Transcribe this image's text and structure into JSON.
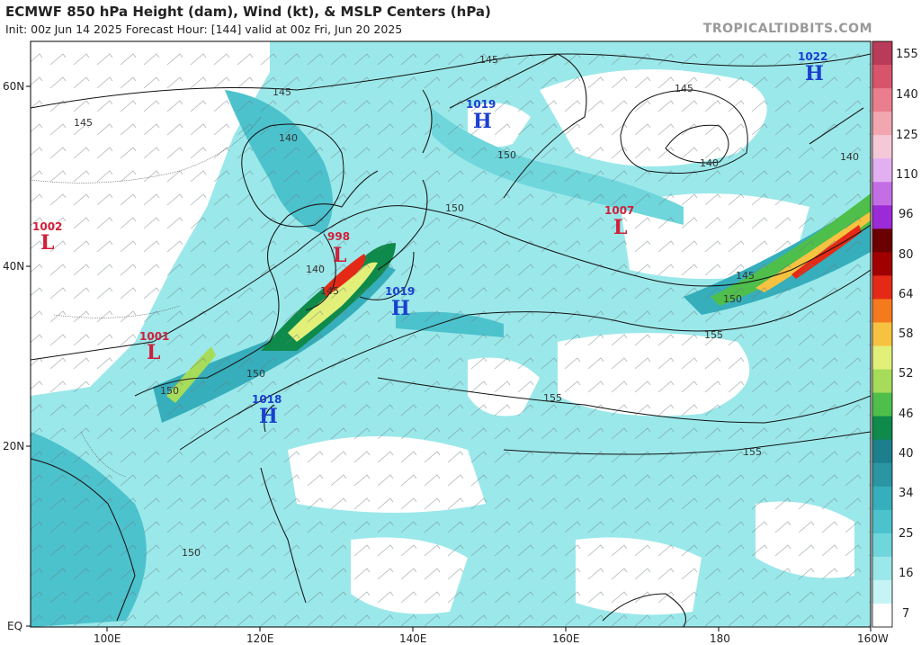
{
  "header": {
    "title": "ECMWF 850 hPa Height (dam), Wind (kt), & MSLP Centers (hPa)",
    "subtitle": "Init: 00z Jun 14 2025   Forecast Hour: [144]   valid at 00z Fri, Jun 20 2025",
    "brand": "TROPICALTIDBITS.COM"
  },
  "axes": {
    "lat_labels": [
      "60N",
      "40N",
      "20N",
      "EQ"
    ],
    "lon_labels": [
      "100E",
      "120E",
      "140E",
      "160E",
      "180",
      "160W"
    ]
  },
  "colorbar": {
    "labels": [
      "155",
      "140",
      "125",
      "110",
      "96",
      "80",
      "64",
      "58",
      "52",
      "46",
      "40",
      "34",
      "25",
      "16",
      "7"
    ],
    "colors": [
      "#b83c5a",
      "#d8546a",
      "#ea7e8c",
      "#f2a6b0",
      "#f5c8d8",
      "#e2b0f0",
      "#c46ee6",
      "#9b2bd6",
      "#6a0000",
      "#a00000",
      "#e42a16",
      "#f57a1e",
      "#f7c240",
      "#e2f07a",
      "#a6dc5a",
      "#4ebf4a",
      "#0e8a4a",
      "#1d7e8c",
      "#2a95a3",
      "#36aebb",
      "#4cc2cd",
      "#6fd6dc",
      "#9be8ea",
      "#c6f4f4",
      "#ffffff"
    ]
  },
  "contour_labels": [
    "145",
    "145",
    "145",
    "140",
    "150",
    "150",
    "140",
    "145",
    "150",
    "155",
    "155",
    "140",
    "145",
    "150",
    "155",
    "150",
    "150",
    "145",
    "140"
  ],
  "pressure_centers": [
    {
      "type": "L",
      "value": "1002"
    },
    {
      "type": "L",
      "value": "1001"
    },
    {
      "type": "L",
      "value": "998"
    },
    {
      "type": "L",
      "value": "1007"
    },
    {
      "type": "H",
      "value": "1019"
    },
    {
      "type": "H",
      "value": "1019"
    },
    {
      "type": "H",
      "value": "1018"
    },
    {
      "type": "H",
      "value": "1022"
    }
  ],
  "colors": {
    "low": "#d0203a",
    "high": "#1a3fd0"
  }
}
